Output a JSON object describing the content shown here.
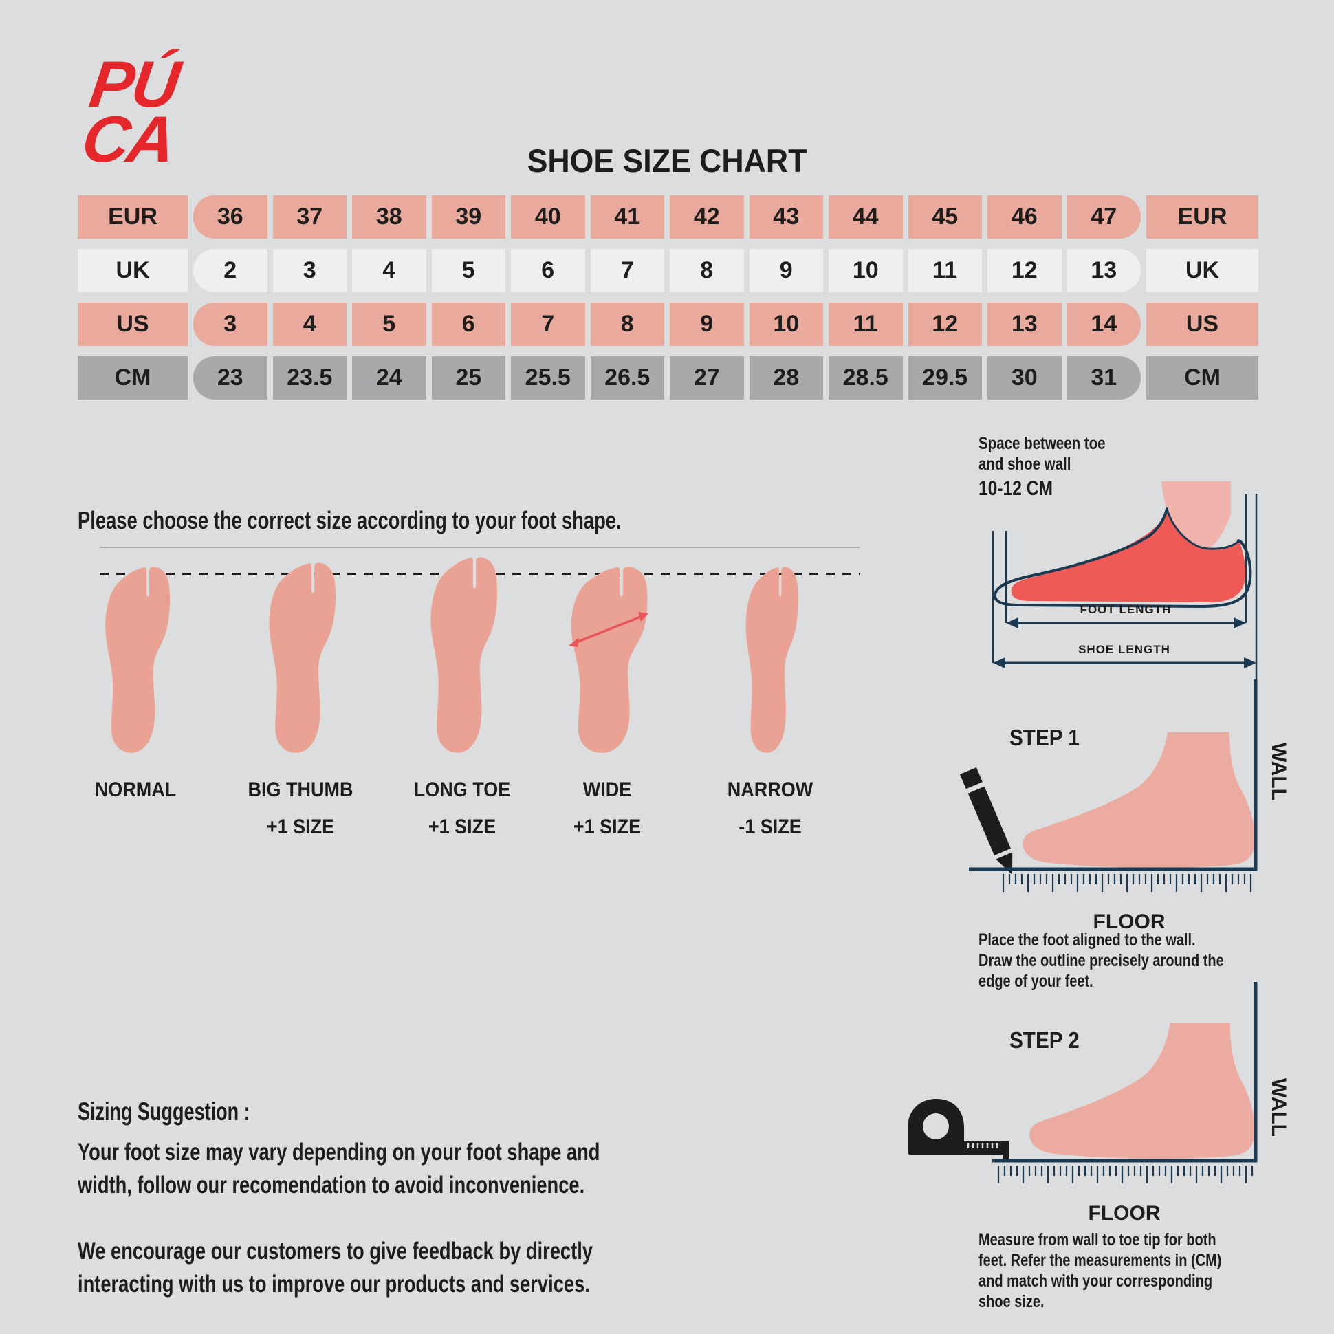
{
  "brand": {
    "line1": "PÚ",
    "line2": "CA",
    "color": "#e5262a"
  },
  "title": "SHOE SIZE CHART",
  "size_table": {
    "rows": [
      {
        "label": "EUR",
        "style": "pink",
        "values": [
          "36",
          "37",
          "38",
          "39",
          "40",
          "41",
          "42",
          "43",
          "44",
          "45",
          "46",
          "47"
        ]
      },
      {
        "label": "UK",
        "style": "light",
        "values": [
          "2",
          "3",
          "4",
          "5",
          "6",
          "7",
          "8",
          "9",
          "10",
          "11",
          "12",
          "13"
        ]
      },
      {
        "label": "US",
        "style": "pink",
        "values": [
          "3",
          "4",
          "5",
          "6",
          "7",
          "8",
          "9",
          "10",
          "11",
          "12",
          "13",
          "14"
        ]
      },
      {
        "label": "CM",
        "style": "gray",
        "values": [
          "23",
          "23.5",
          "24",
          "25",
          "25.5",
          "26.5",
          "27",
          "28",
          "28.5",
          "29.5",
          "30",
          "31"
        ]
      }
    ]
  },
  "foot_shapes": {
    "heading": "Please choose the correct size according to your foot shape.",
    "shapes": [
      {
        "name": "NORMAL",
        "note": ""
      },
      {
        "name": "BIG THUMB",
        "note": "+1 SIZE"
      },
      {
        "name": "LONG TOE",
        "note": "+1 SIZE"
      },
      {
        "name": "WIDE",
        "note": "+1 SIZE"
      },
      {
        "name": "NARROW",
        "note": "-1 SIZE"
      }
    ]
  },
  "shoe_diagram": {
    "note_line1": "Space between toe",
    "note_line2": "and shoe wall",
    "note_line3": "10-12 CM",
    "foot_length_label": "FOOT LENGTH",
    "shoe_length_label": "SHOE LENGTH"
  },
  "step1": {
    "title": "STEP 1",
    "wall_label": "WALL",
    "floor_label": "FLOOR",
    "description_lines": [
      "Place the foot aligned to the wall.",
      "Draw the outline precisely around the",
      "edge of your feet."
    ]
  },
  "step2": {
    "title": "STEP 2",
    "wall_label": "WALL",
    "floor_label": "FLOOR",
    "description_lines": [
      "Measure from wall to toe tip for both",
      "feet. Refer the measurements in (CM)",
      "and  match  with  your  corresponding",
      "shoe size."
    ]
  },
  "sizing_suggestion": {
    "heading": "Sizing Suggestion :",
    "paragraph1_lines": [
      "Your foot size may vary depending on your foot shape and",
      "width, follow our recomendation to avoid inconvenience."
    ],
    "paragraph2_lines": [
      "We encourage our customers to give feedback by directly",
      "interacting with us to improve our products and services."
    ]
  },
  "colors": {
    "background": "#dcddde",
    "table_pink": "#e9a99c",
    "table_light": "#efeff1",
    "table_gray": "#a9a8aa",
    "text": "#1d1d1b",
    "logo_red": "#e5262a",
    "foot_top_salmon": "#e9a294",
    "foot_side_salmon": "#ecaba0",
    "shoe_foot_red": "#ef5956",
    "leg_pink": "#f0b4ac",
    "diagram_navy": "#1b3a52",
    "wide_arrow_red": "#e8555a"
  }
}
